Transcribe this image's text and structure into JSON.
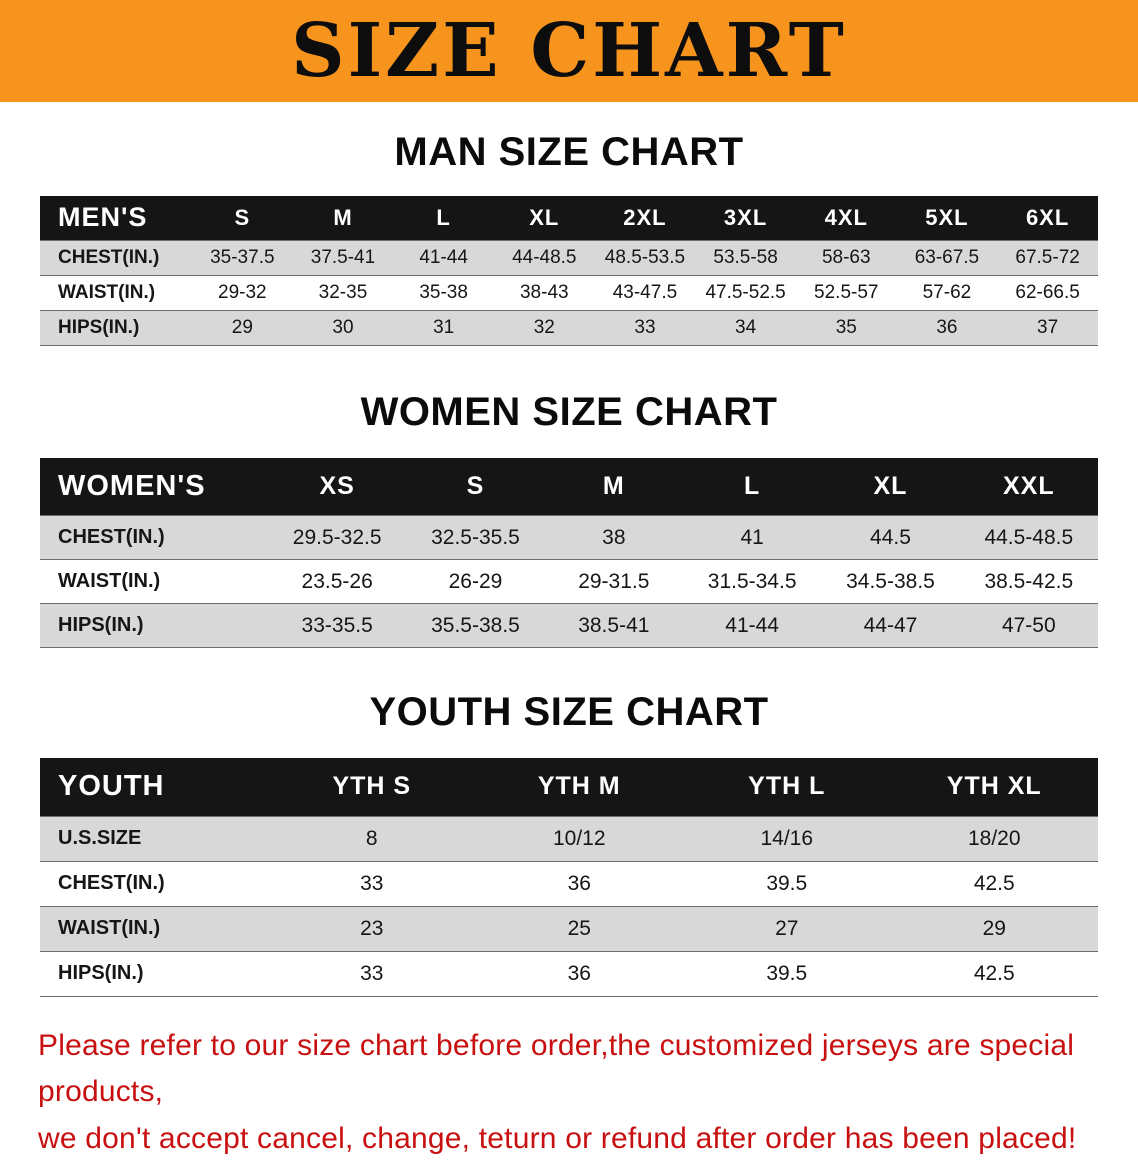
{
  "banner": {
    "title": "SIZE CHART"
  },
  "colors": {
    "banner_bg": "#F7941D",
    "header_bg": "#151515",
    "row_alt": "#d8d8d8",
    "footer_red": "#C81010",
    "line": "#6e6e6e"
  },
  "chart_data": [
    {
      "type": "table",
      "title": "MAN SIZE CHART",
      "columns": [
        "MEN'S",
        "S",
        "M",
        "L",
        "XL",
        "2XL",
        "3XL",
        "4XL",
        "5XL",
        "6XL"
      ],
      "rows": [
        [
          "CHEST(IN.)",
          "35-37.5",
          "37.5-41",
          "41-44",
          "44-48.5",
          "48.5-53.5",
          "53.5-58",
          "58-63",
          "63-67.5",
          "67.5-72"
        ],
        [
          "WAIST(IN.)",
          "29-32",
          "32-35",
          "35-38",
          "38-43",
          "43-47.5",
          "47.5-52.5",
          "52.5-57",
          "57-62",
          "62-66.5"
        ],
        [
          "HIPS(IN.)",
          "29",
          "30",
          "31",
          "32",
          "33",
          "34",
          "35",
          "36",
          "37"
        ]
      ]
    },
    {
      "type": "table",
      "title": "WOMEN SIZE CHART",
      "columns": [
        "WOMEN'S",
        "XS",
        "S",
        "M",
        "L",
        "XL",
        "XXL"
      ],
      "rows": [
        [
          "CHEST(IN.)",
          "29.5-32.5",
          "32.5-35.5",
          "38",
          "41",
          "44.5",
          "44.5-48.5"
        ],
        [
          "WAIST(IN.)",
          "23.5-26",
          "26-29",
          "29-31.5",
          "31.5-34.5",
          "34.5-38.5",
          "38.5-42.5"
        ],
        [
          "HIPS(IN.)",
          "33-35.5",
          "35.5-38.5",
          "38.5-41",
          "41-44",
          "44-47",
          "47-50"
        ]
      ]
    },
    {
      "type": "table",
      "title": "YOUTH SIZE CHART",
      "columns": [
        "YOUTH",
        "YTH S",
        "YTH M",
        "YTH L",
        "YTH XL"
      ],
      "rows": [
        [
          "U.S.SIZE",
          "8",
          "10/12",
          "14/16",
          "18/20"
        ],
        [
          "CHEST(IN.)",
          "33",
          "36",
          "39.5",
          "42.5"
        ],
        [
          "WAIST(IN.)",
          "23",
          "25",
          "27",
          "29"
        ],
        [
          "HIPS(IN.)",
          "33",
          "36",
          "39.5",
          "42.5"
        ]
      ]
    }
  ],
  "footer": {
    "line1": "Please refer to our size chart before order,the customized jerseys are special products,",
    "line2": "we don't accept cancel, change, teturn or refund after order has been placed!"
  }
}
